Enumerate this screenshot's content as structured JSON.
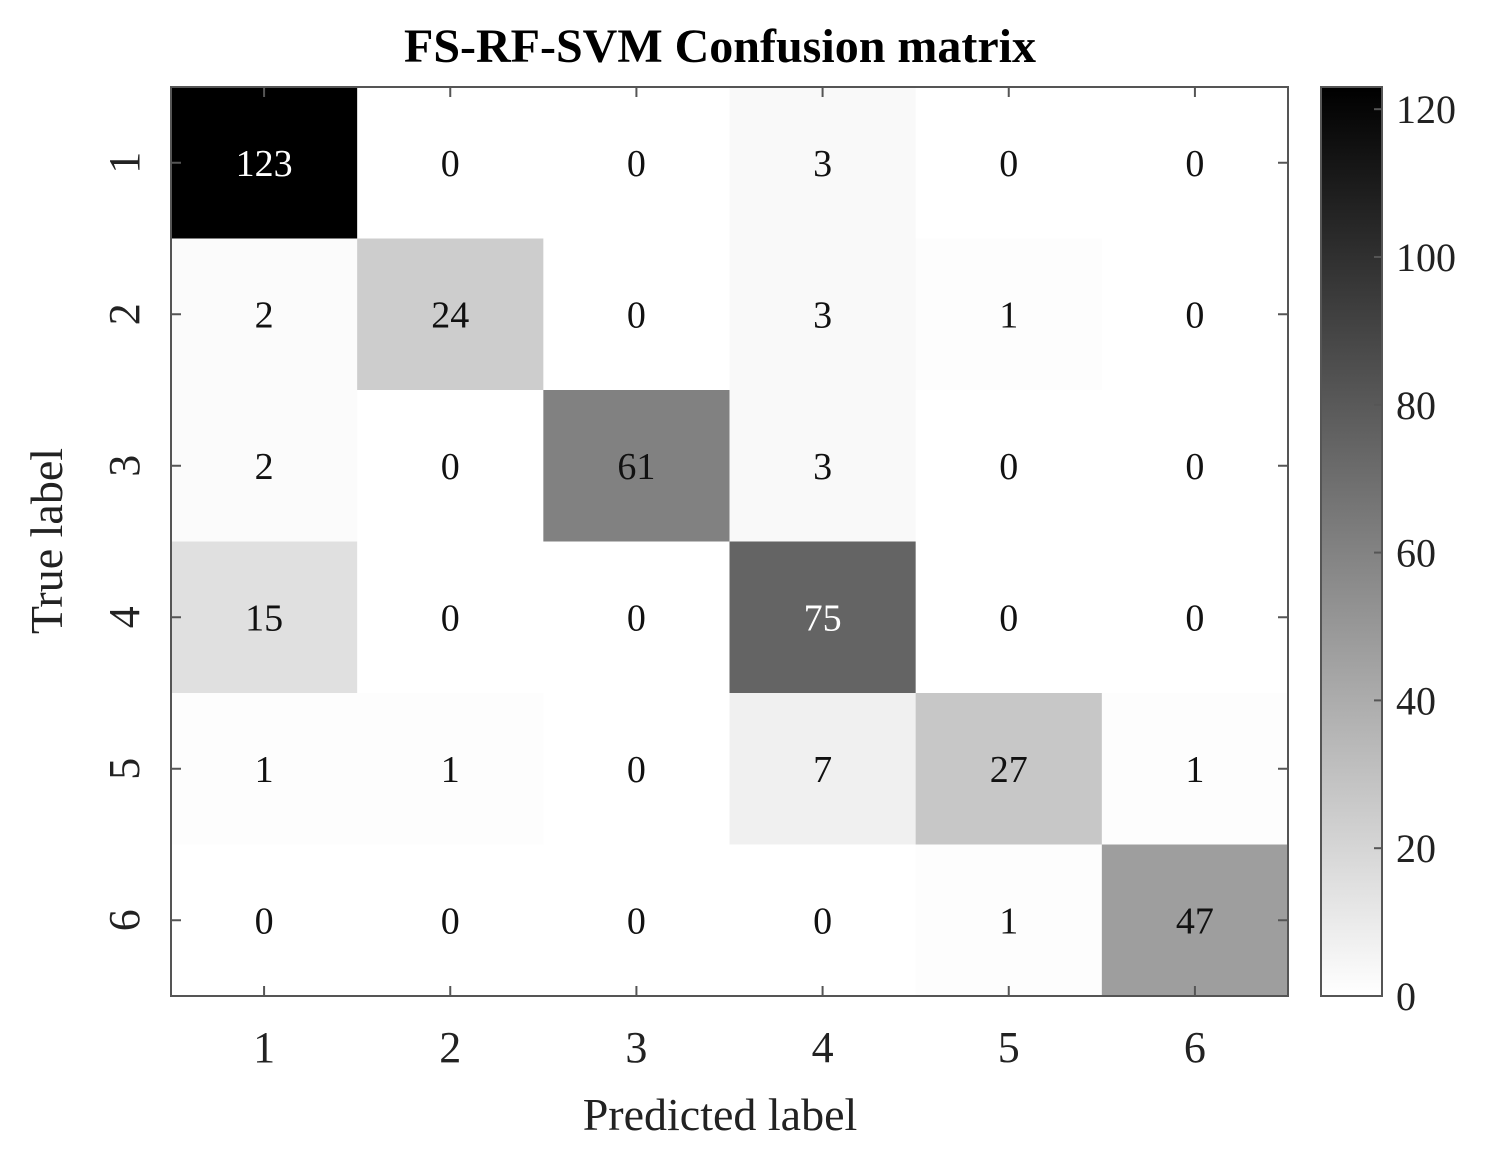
{
  "chart_data": {
    "type": "heatmap",
    "title": "FS-RF-SVM Confusion matrix",
    "xlabel": "Predicted label",
    "ylabel": "True label",
    "x_categories": [
      "1",
      "2",
      "3",
      "4",
      "5",
      "6"
    ],
    "y_categories": [
      "1",
      "2",
      "3",
      "4",
      "5",
      "6"
    ],
    "values": [
      [
        123,
        0,
        0,
        3,
        0,
        0
      ],
      [
        2,
        24,
        0,
        3,
        1,
        0
      ],
      [
        2,
        0,
        61,
        3,
        0,
        0
      ],
      [
        15,
        0,
        0,
        75,
        0,
        0
      ],
      [
        1,
        1,
        0,
        7,
        27,
        1
      ],
      [
        0,
        0,
        0,
        0,
        1,
        47
      ]
    ],
    "colorbar": {
      "range": [
        0,
        123
      ],
      "ticks": [
        0,
        20,
        40,
        60,
        80,
        100,
        120
      ],
      "colormap": "white-to-black"
    },
    "grid": false
  }
}
